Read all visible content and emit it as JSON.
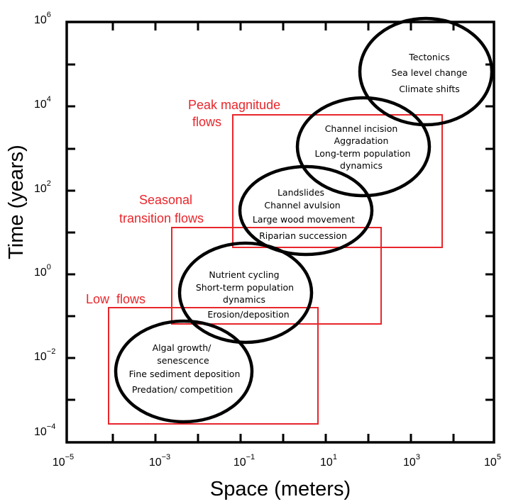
{
  "diagram": {
    "xlabel": "Space (meters)",
    "ylabel": "Time (years)",
    "x_ticks": [
      {
        "base": "10",
        "exp": "−5"
      },
      {
        "base": "10",
        "exp": "−3"
      },
      {
        "base": "10",
        "exp": "−1"
      },
      {
        "base": "10",
        "exp": "1"
      },
      {
        "base": "10",
        "exp": "3"
      },
      {
        "base": "10",
        "exp": "5"
      }
    ],
    "y_ticks": [
      {
        "base": "10",
        "exp": "6"
      },
      {
        "base": "10",
        "exp": "4"
      },
      {
        "base": "10",
        "exp": "2"
      },
      {
        "base": "10",
        "exp": "0"
      },
      {
        "base": "10",
        "exp": "−2"
      },
      {
        "base": "10",
        "exp": "−4"
      }
    ],
    "ellipses": [
      {
        "lines": [
          "Tectonics",
          "Sea level change",
          "Climate shifts"
        ]
      },
      {
        "lines": [
          "Channel incision",
          "Aggradation",
          "Long-term population",
          "dynamics"
        ]
      },
      {
        "lines": [
          "Landslides",
          "Channel avulsion",
          "Large wood movement",
          "Riparian succession"
        ]
      },
      {
        "lines": [
          "Nutrient cycling",
          "Short-term population",
          "dynamics",
          "Erosion/deposition"
        ]
      },
      {
        "lines": [
          "Algal growth/",
          "senescence",
          "Fine sediment deposition",
          "Predation/ competition"
        ]
      }
    ],
    "flow_boxes": [
      {
        "lines": [
          "Peak magnitude",
          "flows"
        ]
      },
      {
        "lines": [
          "Seasonal",
          "transition flows"
        ]
      },
      {
        "lines": [
          "Low  flows"
        ]
      }
    ],
    "colors": {
      "frame": "#000000",
      "flow_box": "#e8262b"
    }
  }
}
